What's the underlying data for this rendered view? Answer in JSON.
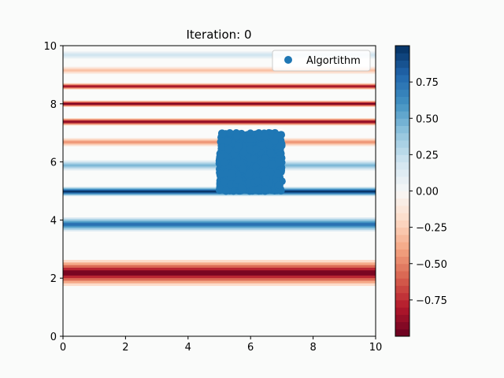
{
  "chart_data": {
    "type": "scatter",
    "title": "Iteration: 0",
    "xlabel": "",
    "ylabel": "",
    "xlim": [
      0,
      10
    ],
    "ylim": [
      0,
      10
    ],
    "xticks": [
      "0",
      "2",
      "4",
      "6",
      "8",
      "10"
    ],
    "yticks": [
      "0",
      "2",
      "4",
      "6",
      "8",
      "10"
    ],
    "background_field": {
      "description_type": "horizontal_bands",
      "bands": [
        {
          "y": 9.68,
          "value": 0.2,
          "halfwidth": 0.08
        },
        {
          "y": 9.15,
          "value": -0.3,
          "halfwidth": 0.08
        },
        {
          "y": 8.6,
          "value": -0.85,
          "halfwidth": 0.07
        },
        {
          "y": 8.0,
          "value": -0.95,
          "halfwidth": 0.07
        },
        {
          "y": 7.38,
          "value": -0.9,
          "halfwidth": 0.08
        },
        {
          "y": 6.68,
          "value": -0.45,
          "halfwidth": 0.09
        },
        {
          "y": 5.88,
          "value": 0.45,
          "halfwidth": 0.11
        },
        {
          "y": 4.98,
          "value": 0.97,
          "halfwidth": 0.1
        },
        {
          "y": 3.85,
          "value": 0.75,
          "halfwidth": 0.15
        },
        {
          "y": 2.18,
          "value": -0.95,
          "halfwidth": 0.28
        }
      ]
    },
    "series": [
      {
        "name": "Algortithm",
        "color": "#1f77b4",
        "region": {
          "xmin": 5.0,
          "xmax": 7.0,
          "ymin": 5.0,
          "ymax": 7.0
        }
      }
    ],
    "legend": {
      "location": "top-right",
      "entries": [
        "Algortithm"
      ]
    },
    "colorbar": {
      "min": -1,
      "max": 1,
      "levels": 40,
      "ticks": [
        "0.75",
        "0.50",
        "0.25",
        "0.00",
        "−0.25",
        "−0.50",
        "−0.75"
      ],
      "tick_values": [
        0.75,
        0.5,
        0.25,
        0.0,
        -0.25,
        -0.5,
        -0.75
      ],
      "colormap": "RdBu"
    }
  }
}
